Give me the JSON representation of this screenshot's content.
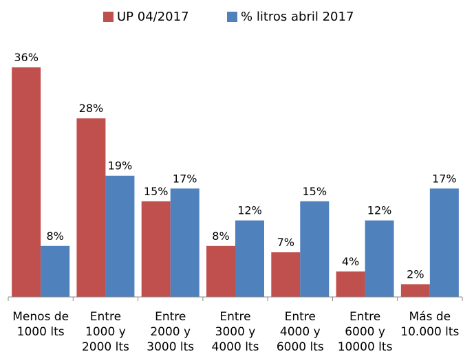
{
  "chart_data": {
    "type": "bar",
    "categories": [
      [
        "Menos de",
        "1000 lts"
      ],
      [
        "Entre",
        "1000 y",
        "2000 lts"
      ],
      [
        "Entre",
        "2000 y",
        "3000 lts"
      ],
      [
        "Entre",
        "3000 y",
        "4000 lts"
      ],
      [
        "Entre",
        "4000 y",
        "6000 lts"
      ],
      [
        "Entre",
        "6000 y",
        "10000 lts"
      ],
      [
        "Más de",
        "10.000 lts"
      ]
    ],
    "series": [
      {
        "name": "UP 04/2017",
        "color": "#c0504d",
        "values": [
          36,
          28,
          15,
          8,
          7,
          4,
          2
        ],
        "value_labels": [
          "36%",
          "28%",
          "15%",
          "8%",
          "7%",
          "4%",
          "2%"
        ]
      },
      {
        "name": "% litros abril 2017",
        "color": "#4f81bd",
        "values": [
          8,
          19,
          17,
          12,
          15,
          12,
          17
        ],
        "value_labels": [
          "8%",
          "19%",
          "17%",
          "12%",
          "15%",
          "12%",
          "17%"
        ]
      }
    ],
    "legend": "top"
  }
}
